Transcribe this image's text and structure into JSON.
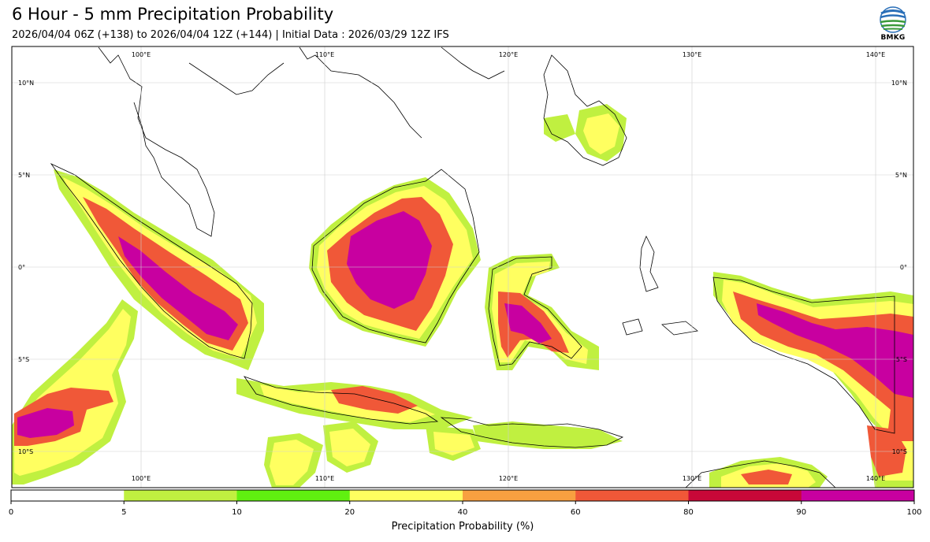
{
  "header": {
    "title": "6 Hour - 5 mm Precipitation Probability",
    "subtitle": "2026/04/04 06Z (+138) to 2026/04/04 12Z (+144) | Initial Data : 2026/03/29 12Z IFS"
  },
  "logo": {
    "text": "BMKG"
  },
  "map": {
    "lon_labels": [
      "100°E",
      "110°E",
      "120°E",
      "130°E",
      "140°E"
    ],
    "lat_labels": [
      "10°N",
      "5°N",
      "0°",
      "5°S",
      "10°S"
    ],
    "lon_range": [
      92,
      141.3
    ],
    "lat_range": [
      -11.9,
      12
    ]
  },
  "colorbar": {
    "label": "Precipitation Probability (%)",
    "ticks": [
      "0",
      "5",
      "10",
      "20",
      "40",
      "60",
      "80",
      "90",
      "100"
    ],
    "colors": [
      "#ffffff",
      "#c0f040",
      "#60f010",
      "#ffff60",
      "#f8a040",
      "#f05838",
      "#c80838",
      "#c800a0"
    ]
  },
  "legend_colors": {
    "low": "#c0f040",
    "mid": "#ffff60",
    "high": "#f05838",
    "very_high": "#c800a0",
    "coast": "#000000"
  }
}
